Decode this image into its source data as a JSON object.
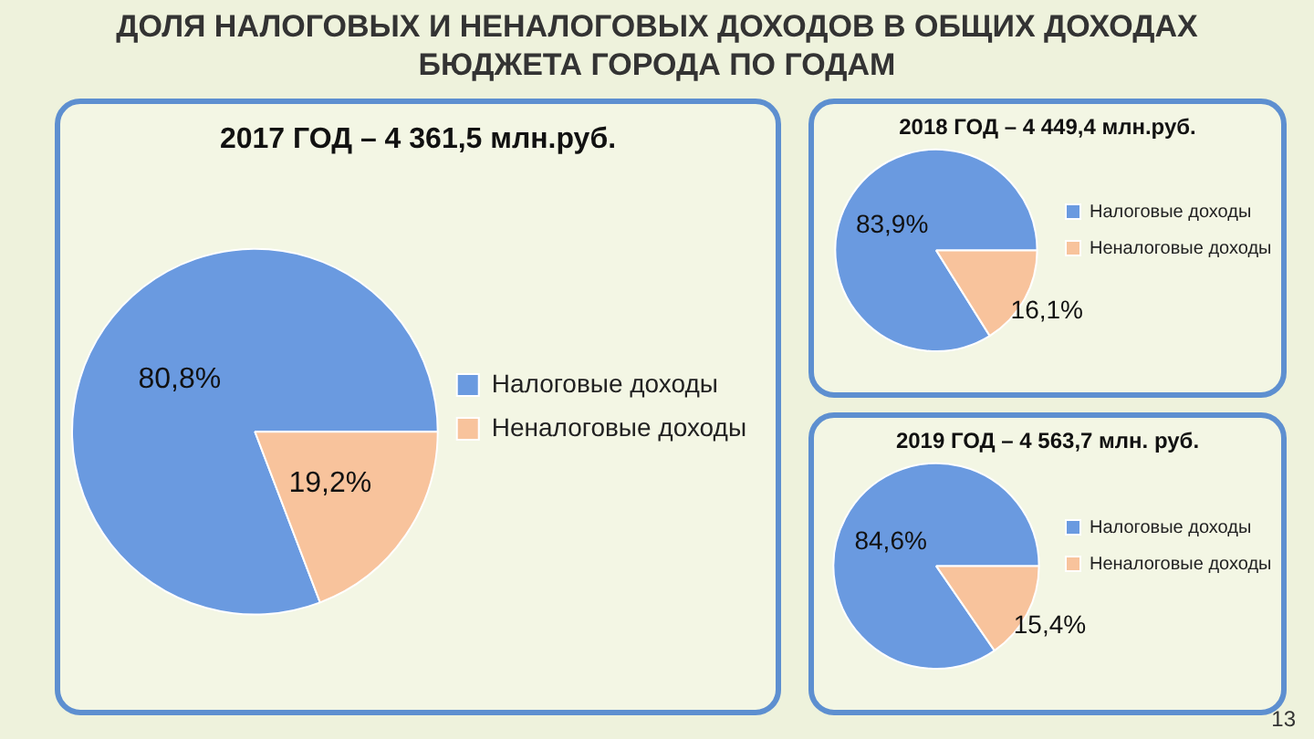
{
  "chart_data": [
    {
      "type": "pie",
      "title": "2017 ГОД – 4 361,5 млн.руб.",
      "categories": [
        "Налоговые доходы",
        "Неналоговые доходы"
      ],
      "values": [
        80.8,
        19.2
      ],
      "value_labels": [
        "80,8%",
        "19,2%"
      ],
      "colors": [
        "#6a9ae0",
        "#f8c39c"
      ],
      "legend": "right",
      "annotations": [
        "ДОЛЯ НАЛОГОВЫХ И НЕНАЛОГОВЫХ ДОХОДОВ В ОБЩИХ ДОХОДАХ БЮДЖЕТА ГОРОДА ПО ГОДАМ",
        "13"
      ]
    },
    {
      "type": "pie",
      "title": "2018 ГОД – 4 449,4 млн.руб.",
      "categories": [
        "Налоговые доходы",
        "Неналоговые доходы"
      ],
      "values": [
        83.9,
        16.1
      ],
      "value_labels": [
        "83,9%",
        "16,1%"
      ],
      "colors": [
        "#6a9ae0",
        "#f8c39c"
      ],
      "legend": "right"
    },
    {
      "type": "pie",
      "title": "2019 ГОД – 4 563,7 млн. руб.",
      "categories": [
        "Налоговые доходы",
        "Неналоговые доходы"
      ],
      "values": [
        84.6,
        15.4
      ],
      "value_labels": [
        "84,6%",
        "15,4%"
      ],
      "colors": [
        "#6a9ae0",
        "#f8c39c"
      ],
      "legend": "right"
    }
  ]
}
